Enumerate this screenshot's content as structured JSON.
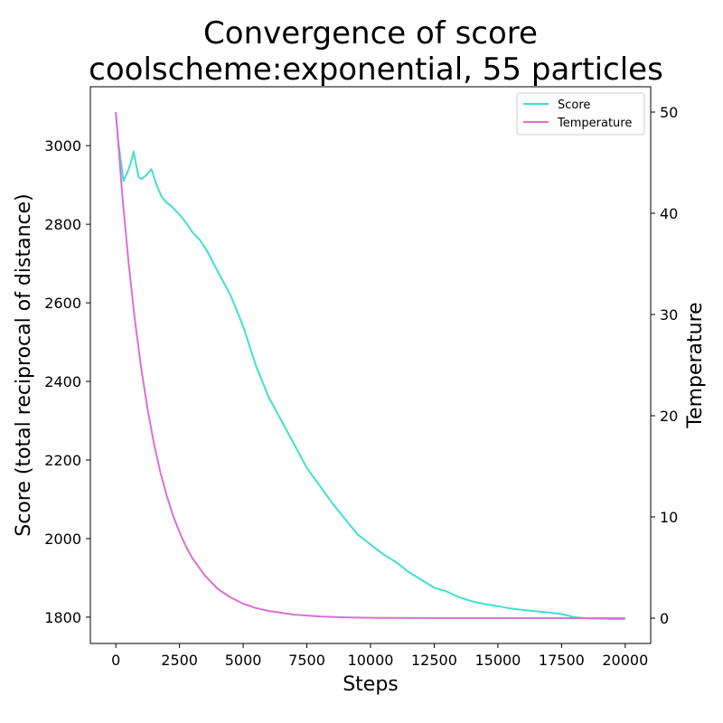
{
  "chart_data": {
    "type": "line",
    "title_line1": "Convergence of score",
    "title_line2": "coolscheme:exponential, 55 particles",
    "xlabel": "Steps",
    "ylabel_left": "Score (total reciprocal of distance)",
    "ylabel_right": "Temperature",
    "xlim": [
      -1000,
      21000
    ],
    "ylim_left": [
      1733,
      3150
    ],
    "ylim_right": [
      -2.5,
      52.5
    ],
    "x_ticks": [
      0,
      2500,
      5000,
      7500,
      10000,
      12500,
      15000,
      17500,
      20000
    ],
    "y_left_ticks": [
      1800,
      2000,
      2200,
      2400,
      2600,
      2800,
      3000
    ],
    "y_right_ticks": [
      0,
      10,
      20,
      30,
      40,
      50
    ],
    "legend": {
      "placement": "top-right",
      "entries": [
        "Score",
        "Temperature"
      ]
    },
    "series": [
      {
        "name": "Score",
        "axis": "left",
        "color": "#40e0d0",
        "x": [
          0,
          100,
          200,
          300,
          400,
          500,
          600,
          700,
          800,
          900,
          1000,
          1200,
          1400,
          1600,
          1800,
          2000,
          2200,
          2500,
          2800,
          3000,
          3300,
          3600,
          4000,
          4500,
          5000,
          5500,
          6000,
          6500,
          7000,
          7500,
          8000,
          8500,
          9000,
          9500,
          10000,
          10500,
          11000,
          11500,
          12000,
          12500,
          13000,
          13500,
          14000,
          14500,
          15000,
          15500,
          16000,
          16500,
          17000,
          17500,
          18000,
          18500,
          19000,
          19500,
          20000
        ],
        "y": [
          3080,
          3010,
          2960,
          2910,
          2925,
          2940,
          2960,
          2985,
          2950,
          2920,
          2915,
          2925,
          2940,
          2900,
          2870,
          2855,
          2845,
          2825,
          2800,
          2780,
          2760,
          2730,
          2680,
          2620,
          2540,
          2440,
          2360,
          2300,
          2240,
          2180,
          2135,
          2090,
          2050,
          2010,
          1985,
          1960,
          1940,
          1915,
          1895,
          1875,
          1865,
          1850,
          1840,
          1833,
          1828,
          1822,
          1818,
          1815,
          1812,
          1808,
          1800,
          1797,
          1796,
          1795,
          1795
        ]
      },
      {
        "name": "Temperature",
        "axis": "right",
        "color": "#da70d6",
        "x": [
          0,
          250,
          500,
          750,
          1000,
          1250,
          1500,
          1750,
          2000,
          2250,
          2500,
          2750,
          3000,
          3500,
          4000,
          4500,
          5000,
          5500,
          6000,
          7000,
          8000,
          9000,
          10000,
          12000,
          14000,
          16000,
          18000,
          20000
        ],
        "y": [
          50,
          41.9,
          35.1,
          29.4,
          24.6,
          20.6,
          17.2,
          14.4,
          12.1,
          10.1,
          8.5,
          7.1,
          5.95,
          4.2,
          2.9,
          2.05,
          1.43,
          1.0,
          0.71,
          0.35,
          0.17,
          0.08,
          0.04,
          0.01,
          0,
          0,
          0,
          0
        ]
      }
    ]
  }
}
